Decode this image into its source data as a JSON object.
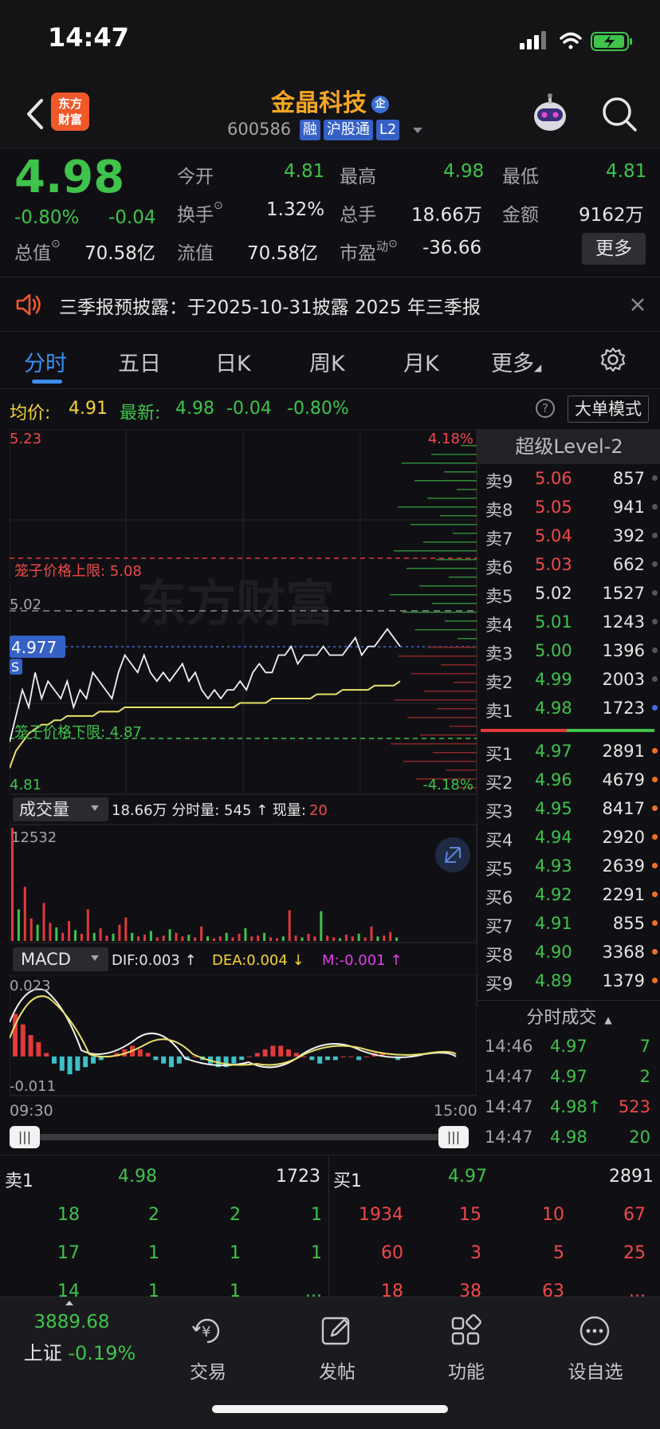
{
  "status_bar": {
    "time": "14:47"
  },
  "header": {
    "logo": "东方\n财富",
    "logo_line1": "东方",
    "logo_line2": "财富",
    "stock_name": "金晶科技",
    "qi_badge": "企",
    "stock_code": "600586",
    "tags": [
      "融",
      "沪股通",
      "L2"
    ]
  },
  "quote": {
    "price": "4.98",
    "change_pct": "-0.80%",
    "change": "-0.04",
    "open_label": "今开",
    "open": "4.81",
    "high_label": "最高",
    "high": "4.98",
    "low_label": "最低",
    "low": "4.81",
    "turnover_label": "换手",
    "turnover": "1.32%",
    "volume_label": "总手",
    "volume": "18.66万",
    "amount_label": "金额",
    "amount": "9162万",
    "mcap_label": "总值",
    "mcap": "70.58亿",
    "float_label": "流值",
    "float": "70.58亿",
    "pe_label": "市盈",
    "pe_sup": "动",
    "pe": "-36.66",
    "more_button": "更多"
  },
  "notice": {
    "text": "三季报预披露：于2025-10-31披露 2025 年三季报"
  },
  "tabs": [
    "分时",
    "五日",
    "日K",
    "周K",
    "月K",
    "更多"
  ],
  "info_row": {
    "avg_label": "均价:",
    "avg": "4.91",
    "latest_label": "最新:",
    "latest": "4.98",
    "latest_change": "-0.04",
    "latest_pct": "-0.80%",
    "mode_button": "大单模式"
  },
  "chart_data": [
    {
      "type": "line",
      "x_start": "09:30",
      "x_end": "15:00",
      "y_max_label": "5.23",
      "y_min_label": "4.81",
      "pct_max_label": "4.18%",
      "pct_min_label": "-4.18%",
      "prev_close_label": "5.02",
      "cursor_price": "4.977",
      "s_marker": "S",
      "upper_limit_label": "笼子价格上限: 5.08",
      "lower_limit_label": "笼子价格下限: 4.87",
      "watermark": "东方财富",
      "ylim": [
        4.81,
        5.23
      ],
      "series": [
        {
          "values": [
            4.87,
            4.9,
            4.93,
            4.91,
            4.95,
            4.92,
            4.94,
            4.93,
            4.92,
            4.94,
            4.91,
            4.93,
            4.92,
            4.95,
            4.94,
            4.93,
            4.92,
            4.95,
            4.97,
            4.96,
            4.95,
            4.97,
            4.95,
            4.94,
            4.95,
            4.94,
            4.95,
            4.96,
            4.94,
            4.95,
            4.93,
            4.92,
            4.93,
            4.92,
            4.93,
            4.93,
            4.94,
            4.93,
            4.95,
            4.96,
            4.95,
            4.95,
            4.97,
            4.97,
            4.98,
            4.96,
            4.97,
            4.97,
            4.97,
            4.98,
            4.97,
            4.97,
            4.97,
            4.98,
            4.99,
            4.97,
            4.98,
            4.98,
            4.99,
            5.0,
            4.99,
            4.98
          ]
        },
        {
          "values": [
            4.84,
            4.86,
            4.87,
            4.88,
            4.885,
            4.89,
            4.89,
            4.895,
            4.895,
            4.9,
            4.9,
            4.9,
            4.9,
            4.9,
            4.905,
            4.905,
            4.905,
            4.905,
            4.91,
            4.91,
            4.91,
            4.91,
            4.91,
            4.91,
            4.91,
            4.91,
            4.91,
            4.91,
            4.91,
            4.91,
            4.91,
            4.91,
            4.91,
            4.91,
            4.91,
            4.91,
            4.915,
            4.915,
            4.915,
            4.915,
            4.915,
            4.92,
            4.92,
            4.92,
            4.92,
            4.92,
            4.92,
            4.92,
            4.925,
            4.925,
            4.925,
            4.925,
            4.93,
            4.93,
            4.93,
            4.93,
            4.93,
            4.935,
            4.935,
            4.935,
            4.935,
            4.94
          ]
        }
      ]
    },
    {
      "type": "bar",
      "title": "成交量",
      "summary": "18.66万 分时量: 545 ↑ 现量:",
      "current_volume": "20",
      "y_max_label": "12532",
      "ylim": [
        0,
        12532
      ],
      "values": [
        12532,
        3500,
        6000,
        2500,
        1800,
        4200,
        2000,
        1500,
        900,
        2200,
        1200,
        800,
        3500,
        900,
        1400,
        600,
        800,
        1800,
        2600,
        900,
        500,
        700,
        1100,
        400,
        600,
        1300,
        900,
        500,
        700,
        400,
        1600,
        500,
        300,
        500,
        900,
        400,
        800,
        1400,
        500,
        600,
        900,
        400,
        300,
        500,
        3400,
        600,
        400,
        800,
        500,
        3300,
        600,
        400,
        300,
        700,
        500,
        800,
        400,
        1600,
        500,
        600,
        1000,
        400
      ]
    },
    {
      "type": "bar",
      "title": "MACD",
      "dif": "DIF:0.003 ↑",
      "dea": "DEA:0.004 ↓",
      "m": "M:-0.001 ↑",
      "y_max_label": "0.023",
      "y_min_label": "-0.011",
      "ylim": [
        -0.011,
        0.023
      ],
      "values": [
        0.012,
        0.009,
        0.006,
        0.004,
        0.001,
        -0.002,
        -0.004,
        -0.005,
        -0.004,
        -0.003,
        -0.002,
        -0.001,
        0.0,
        0.001,
        0.002,
        0.003,
        0.002,
        0.001,
        -0.001,
        -0.002,
        -0.003,
        -0.002,
        -0.001,
        0.0,
        -0.001,
        -0.002,
        -0.003,
        -0.003,
        -0.002,
        -0.001,
        0.0,
        0.001,
        0.002,
        0.003,
        0.003,
        0.002,
        0.001,
        0.0,
        -0.001,
        -0.002,
        -0.001,
        -0.001,
        0.0,
        0.0,
        -0.001,
        0.0,
        0.001,
        0.001,
        0.0,
        -0.001
      ]
    }
  ],
  "level2": {
    "title": "超级Level-2",
    "asks": [
      {
        "label": "卖9",
        "price": "5.06",
        "vol": "857"
      },
      {
        "label": "卖8",
        "price": "5.05",
        "vol": "941"
      },
      {
        "label": "卖7",
        "price": "5.04",
        "vol": "392"
      },
      {
        "label": "卖6",
        "price": "5.03",
        "vol": "662"
      },
      {
        "label": "卖5",
        "price": "5.02",
        "vol": "1527"
      },
      {
        "label": "卖4",
        "price": "5.01",
        "vol": "1243"
      },
      {
        "label": "卖3",
        "price": "5.00",
        "vol": "1396"
      },
      {
        "label": "卖2",
        "price": "4.99",
        "vol": "2003"
      },
      {
        "label": "卖1",
        "price": "4.98",
        "vol": "1723"
      }
    ],
    "bids": [
      {
        "label": "买1",
        "price": "4.97",
        "vol": "2891"
      },
      {
        "label": "买2",
        "price": "4.96",
        "vol": "4679"
      },
      {
        "label": "买3",
        "price": "4.95",
        "vol": "8417"
      },
      {
        "label": "买4",
        "price": "4.94",
        "vol": "2920"
      },
      {
        "label": "买5",
        "price": "4.93",
        "vol": "2639"
      },
      {
        "label": "买6",
        "price": "4.92",
        "vol": "2291"
      },
      {
        "label": "买7",
        "price": "4.91",
        "vol": "855"
      },
      {
        "label": "买8",
        "price": "4.90",
        "vol": "3368"
      },
      {
        "label": "买9",
        "price": "4.89",
        "vol": "1379"
      }
    ],
    "trades_title": "分时成交",
    "trades": [
      {
        "time": "14:46",
        "price": "4.97",
        "vol": "7"
      },
      {
        "time": "14:47",
        "price": "4.97",
        "vol": "2"
      },
      {
        "time": "14:47",
        "price": "4.98↑",
        "vol": "523"
      },
      {
        "time": "14:47",
        "price": "4.98",
        "vol": "20"
      }
    ]
  },
  "depth": {
    "ask_label": "卖1",
    "ask_price": "4.98",
    "ask_vol": "1723",
    "bid_label": "买1",
    "bid_price": "4.97",
    "bid_vol": "2891",
    "ask_rows": [
      [
        "18",
        "2",
        "2",
        "1"
      ],
      [
        "17",
        "1",
        "1",
        "1"
      ],
      [
        "14",
        "1",
        "1",
        "..."
      ]
    ],
    "bid_rows": [
      [
        "1934",
        "15",
        "10",
        "67"
      ],
      [
        "60",
        "3",
        "5",
        "25"
      ],
      [
        "18",
        "38",
        "63",
        "..."
      ]
    ]
  },
  "nav": {
    "index_value": "3889.68",
    "index_name": "上证",
    "index_change": "-0.19%",
    "items": [
      "交易",
      "发帖",
      "功能",
      "设自选"
    ]
  }
}
